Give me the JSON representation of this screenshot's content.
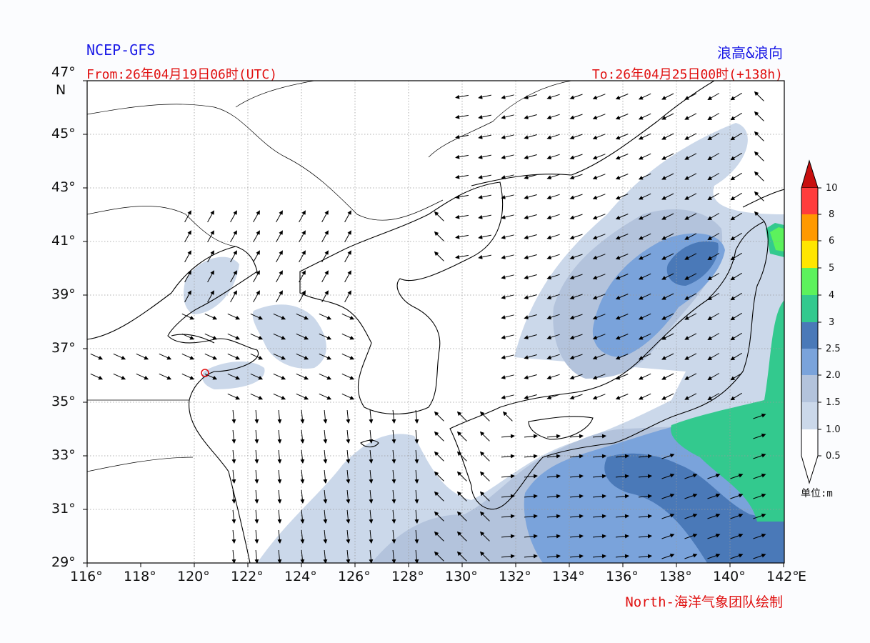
{
  "header": {
    "model": "NCEP-GFS",
    "product": "浪高&浪向",
    "from": "From:26年04月19日06时(UTC)",
    "to": "To:26年04月25日00时(+138h)"
  },
  "footer": {
    "credit": "North-海洋气象团队绘制"
  },
  "axes": {
    "lon_labels": [
      "116°",
      "118°",
      "120°",
      "122°",
      "124°",
      "126°",
      "128°",
      "130°",
      "132°",
      "134°",
      "136°",
      "138°",
      "140°",
      "142°"
    ],
    "lon_suffix": "E",
    "lat_labels": [
      "47°",
      "45°",
      "43°",
      "41°",
      "39°",
      "37°",
      "35°",
      "33°",
      "31°",
      "29°"
    ],
    "lat_suffix": "N",
    "lon_range": [
      116,
      142
    ],
    "lat_range": [
      29,
      47
    ]
  },
  "colorbar": {
    "unit_label": "单位:m",
    "levels": [
      "10",
      "8",
      "6",
      "5",
      "4",
      "3",
      "2.5",
      "2.0",
      "1.5",
      "1.0",
      "0.5"
    ],
    "colors": [
      "#c80f0f",
      "#ff3c3c",
      "#ff9900",
      "#ffe600",
      "#5cf25c",
      "#33c98e",
      "#4a79b8",
      "#7aa3db",
      "#b3c3dc",
      "#cbd8ea",
      "#ffffff"
    ]
  },
  "map": {
    "marker_location": "Qingdao",
    "land_color": "#ffffff",
    "grid": "dotted"
  }
}
